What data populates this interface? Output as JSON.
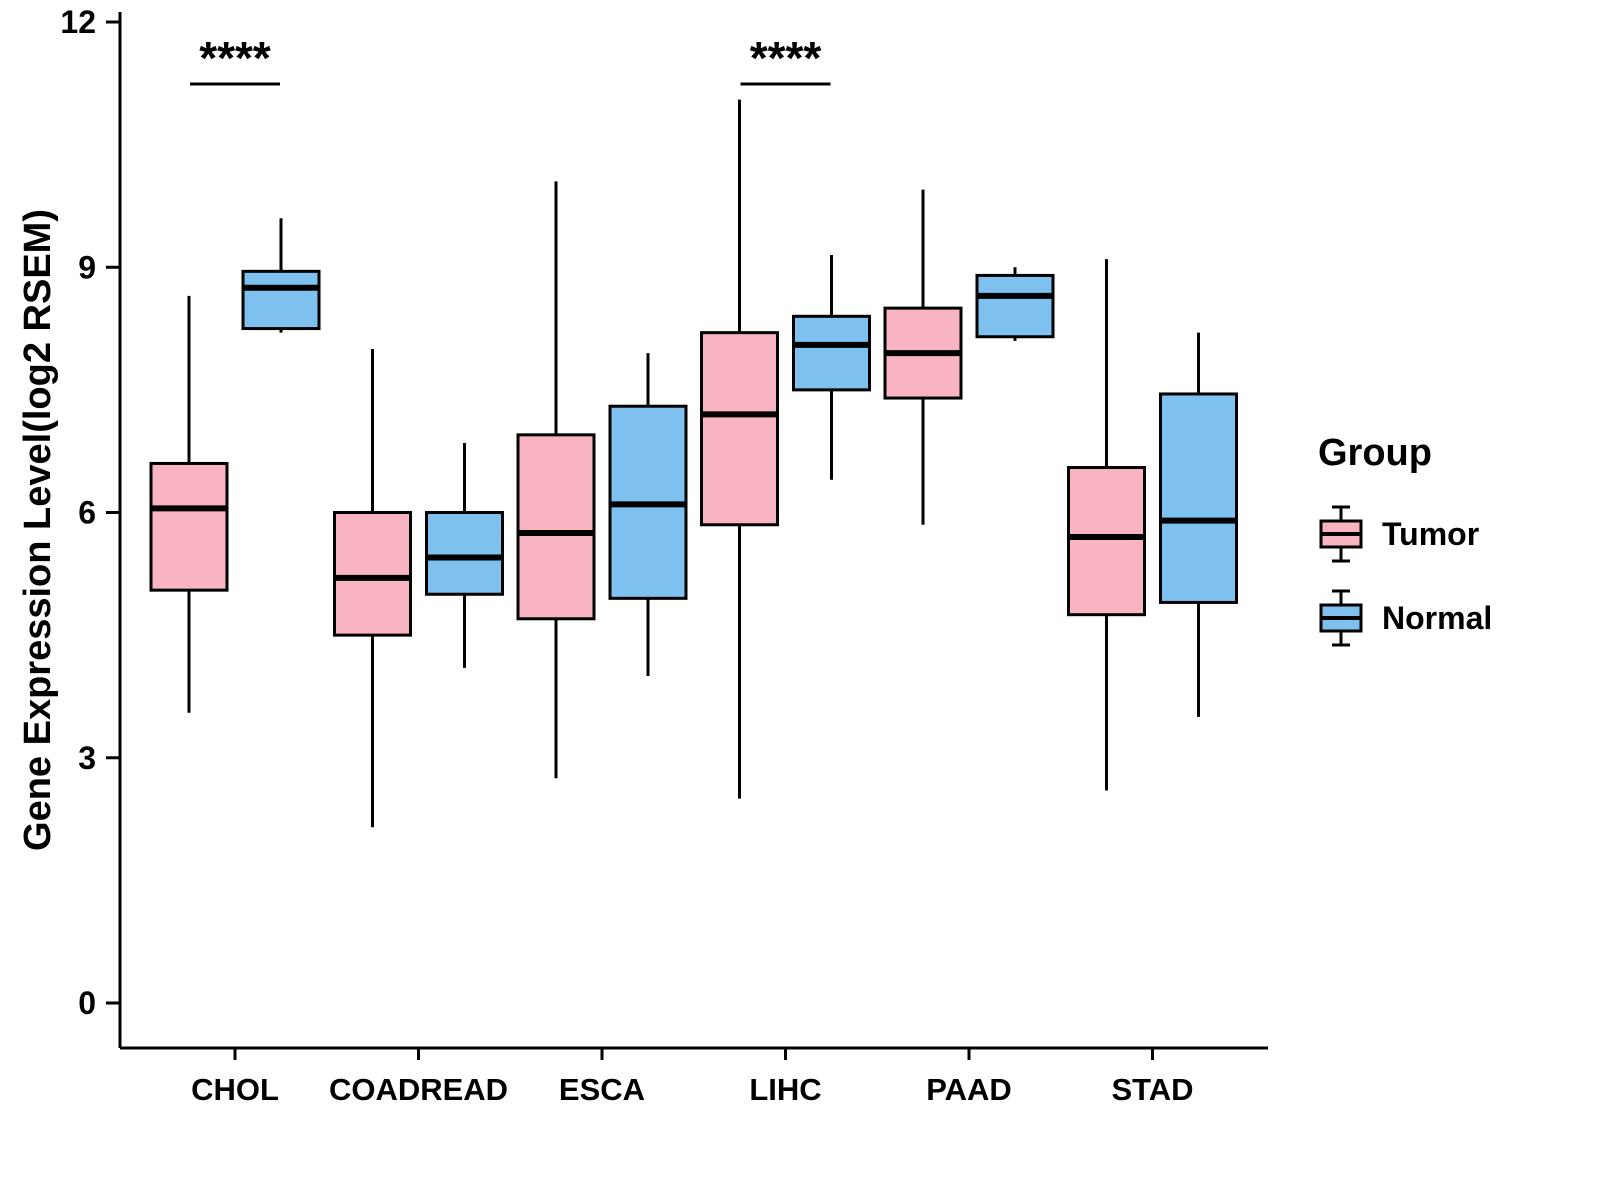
{
  "chart_data": {
    "type": "boxplot",
    "title": "",
    "xlabel": "",
    "ylabel": "Gene Expression Level(log2 RSEM)",
    "ylim": [
      0,
      12
    ],
    "yticks": [
      0,
      3,
      6,
      9,
      12
    ],
    "categories": [
      "CHOL",
      "COADREAD",
      "ESCA",
      "LIHC",
      "PAAD",
      "STAD"
    ],
    "series": [
      {
        "name": "Tumor",
        "color": "#F9B4C1",
        "boxes": [
          {
            "category": "CHOL",
            "min": 3.55,
            "q1": 5.05,
            "median": 6.05,
            "q3": 6.6,
            "max": 8.65
          },
          {
            "category": "COADREAD",
            "min": 2.15,
            "q1": 4.5,
            "median": 5.2,
            "q3": 6.0,
            "max": 8.0
          },
          {
            "category": "ESCA",
            "min": 2.75,
            "q1": 4.7,
            "median": 5.75,
            "q3": 6.95,
            "max": 10.05
          },
          {
            "category": "LIHC",
            "min": 2.5,
            "q1": 5.85,
            "median": 7.2,
            "q3": 8.2,
            "max": 11.05
          },
          {
            "category": "PAAD",
            "min": 5.85,
            "q1": 7.4,
            "median": 7.95,
            "q3": 8.5,
            "max": 9.95
          },
          {
            "category": "STAD",
            "min": 2.6,
            "q1": 4.75,
            "median": 5.7,
            "q3": 6.55,
            "max": 9.1
          }
        ]
      },
      {
        "name": "Normal",
        "color": "#7EC0EE",
        "boxes": [
          {
            "category": "CHOL",
            "min": 8.2,
            "q1": 8.25,
            "median": 8.75,
            "q3": 8.95,
            "max": 9.6
          },
          {
            "category": "COADREAD",
            "min": 4.1,
            "q1": 5.0,
            "median": 5.45,
            "q3": 6.0,
            "max": 6.85
          },
          {
            "category": "ESCA",
            "min": 4.0,
            "q1": 4.95,
            "median": 6.1,
            "q3": 7.3,
            "max": 7.95
          },
          {
            "category": "LIHC",
            "min": 6.4,
            "q1": 7.5,
            "median": 8.05,
            "q3": 8.4,
            "max": 9.15
          },
          {
            "category": "PAAD",
            "min": 8.1,
            "q1": 8.15,
            "median": 8.65,
            "q3": 8.9,
            "max": 9.0
          },
          {
            "category": "STAD",
            "min": 3.5,
            "q1": 4.9,
            "median": 5.9,
            "q3": 7.45,
            "max": 8.2
          }
        ]
      }
    ],
    "annotations": [
      {
        "category": "CHOL",
        "label": "****"
      },
      {
        "category": "LIHC",
        "label": "****"
      }
    ],
    "legend": {
      "title": "Group",
      "position": "right",
      "entries": [
        "Tumor",
        "Normal"
      ]
    },
    "grid": false,
    "axis_color": "#000000"
  }
}
